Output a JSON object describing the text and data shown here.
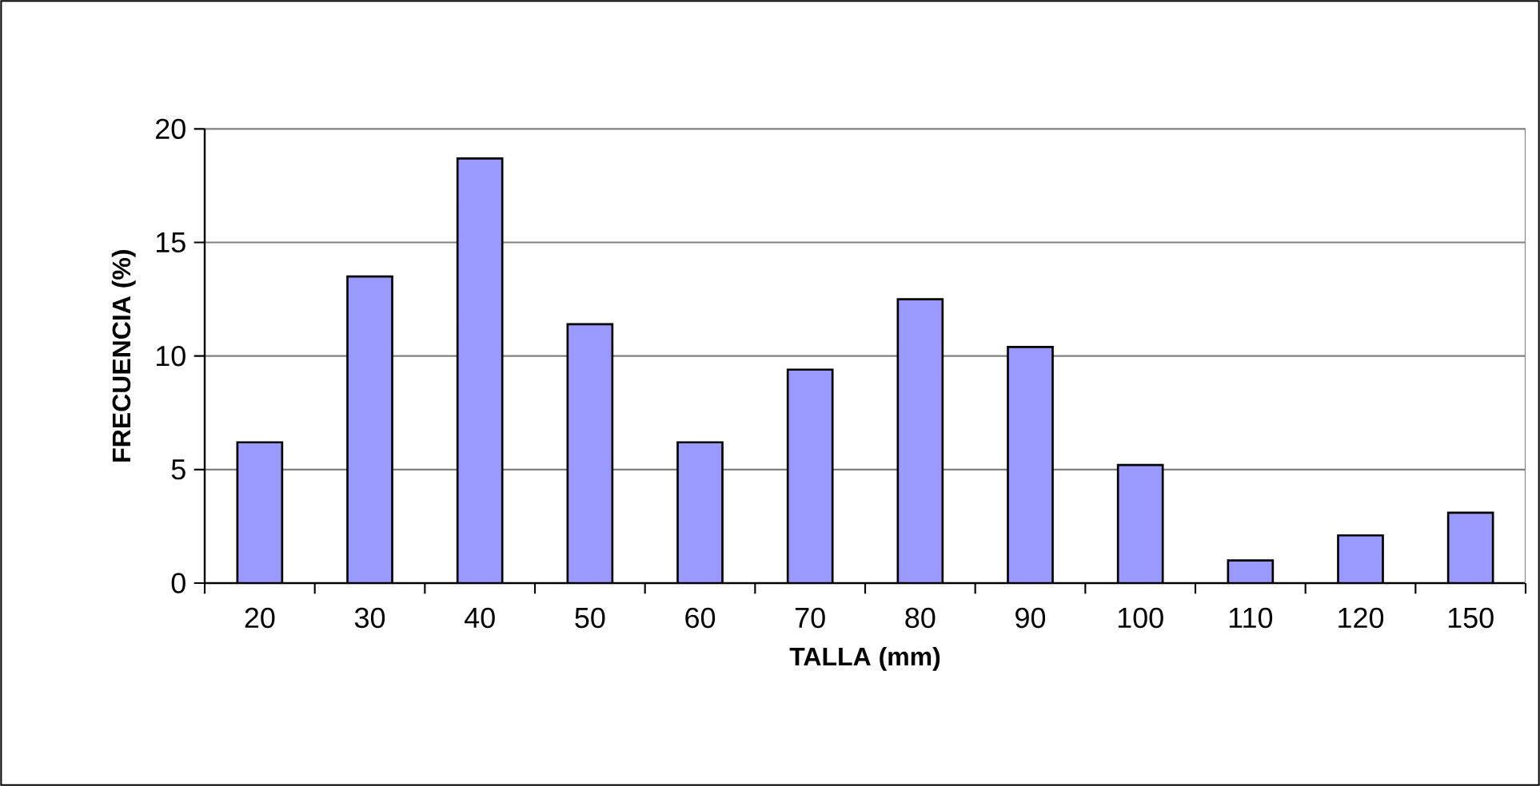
{
  "chart_data": {
    "type": "bar",
    "xlabel": "TALLA (mm)",
    "ylabel": "FRECUENCIA (%)",
    "categories": [
      "20",
      "30",
      "40",
      "50",
      "60",
      "70",
      "80",
      "90",
      "100",
      "110",
      "120",
      "150"
    ],
    "values": [
      6.2,
      13.5,
      18.7,
      11.4,
      6.2,
      9.4,
      12.5,
      10.4,
      5.2,
      1.0,
      2.1,
      3.1
    ],
    "color": "#9999ff",
    "ylim": [
      0,
      20
    ],
    "yticks": [
      0,
      5,
      10,
      15,
      20
    ],
    "grid": "y"
  }
}
